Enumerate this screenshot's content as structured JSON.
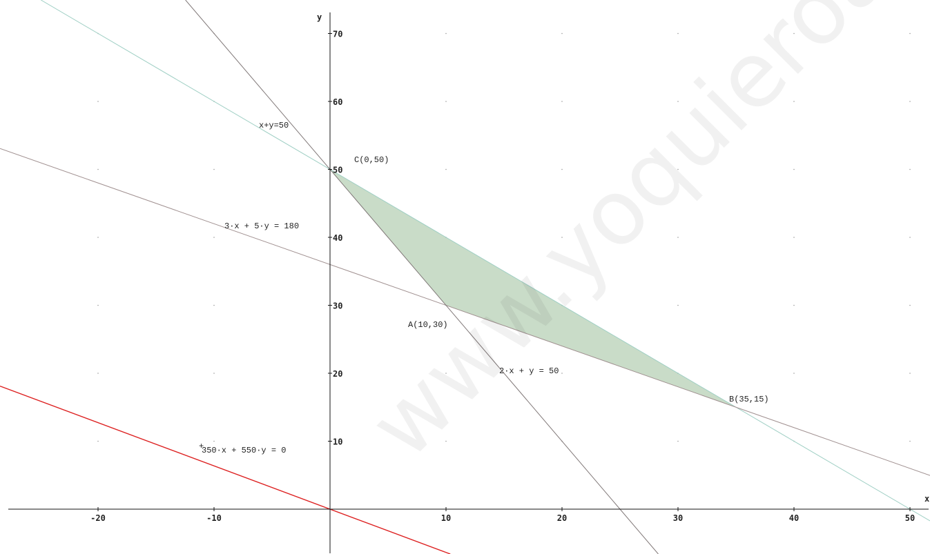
{
  "chart_data": {
    "type": "line",
    "xlabel": "x",
    "ylabel": "y",
    "xlim": [
      -28,
      52
    ],
    "ylim": [
      -6.5,
      73
    ],
    "x_ticks": [
      -20,
      -10,
      10,
      20,
      30,
      40,
      50
    ],
    "y_ticks": [
      10,
      20,
      30,
      40,
      50,
      60,
      70
    ],
    "grid": "dots",
    "lines": [
      {
        "label": "x+y=50",
        "a": 1,
        "b": 1,
        "c": 50,
        "color": "#9fcfc4"
      },
      {
        "label": "3·x + 5·y = 180",
        "a": 3,
        "b": 5,
        "c": 180,
        "color": "#a09090"
      },
      {
        "label": "2·x + y = 50",
        "a": 2,
        "b": 1,
        "c": 50,
        "color": "#807878"
      },
      {
        "label": "350·x + 550·y = 0",
        "a": 350,
        "b": 550,
        "c": 0,
        "color": "#dd2222"
      }
    ],
    "feasible_region": [
      [
        0,
        50
      ],
      [
        10,
        30
      ],
      [
        35,
        15
      ]
    ],
    "region_color": "#c9dcc8",
    "points": [
      {
        "label": "C(0,50)",
        "x": 0,
        "y": 50
      },
      {
        "label": "A(10,30)",
        "x": 10,
        "y": 30
      },
      {
        "label": "B(35,15)",
        "x": 35,
        "y": 15
      }
    ]
  },
  "watermark": "www.yoquieroaprobar.es"
}
